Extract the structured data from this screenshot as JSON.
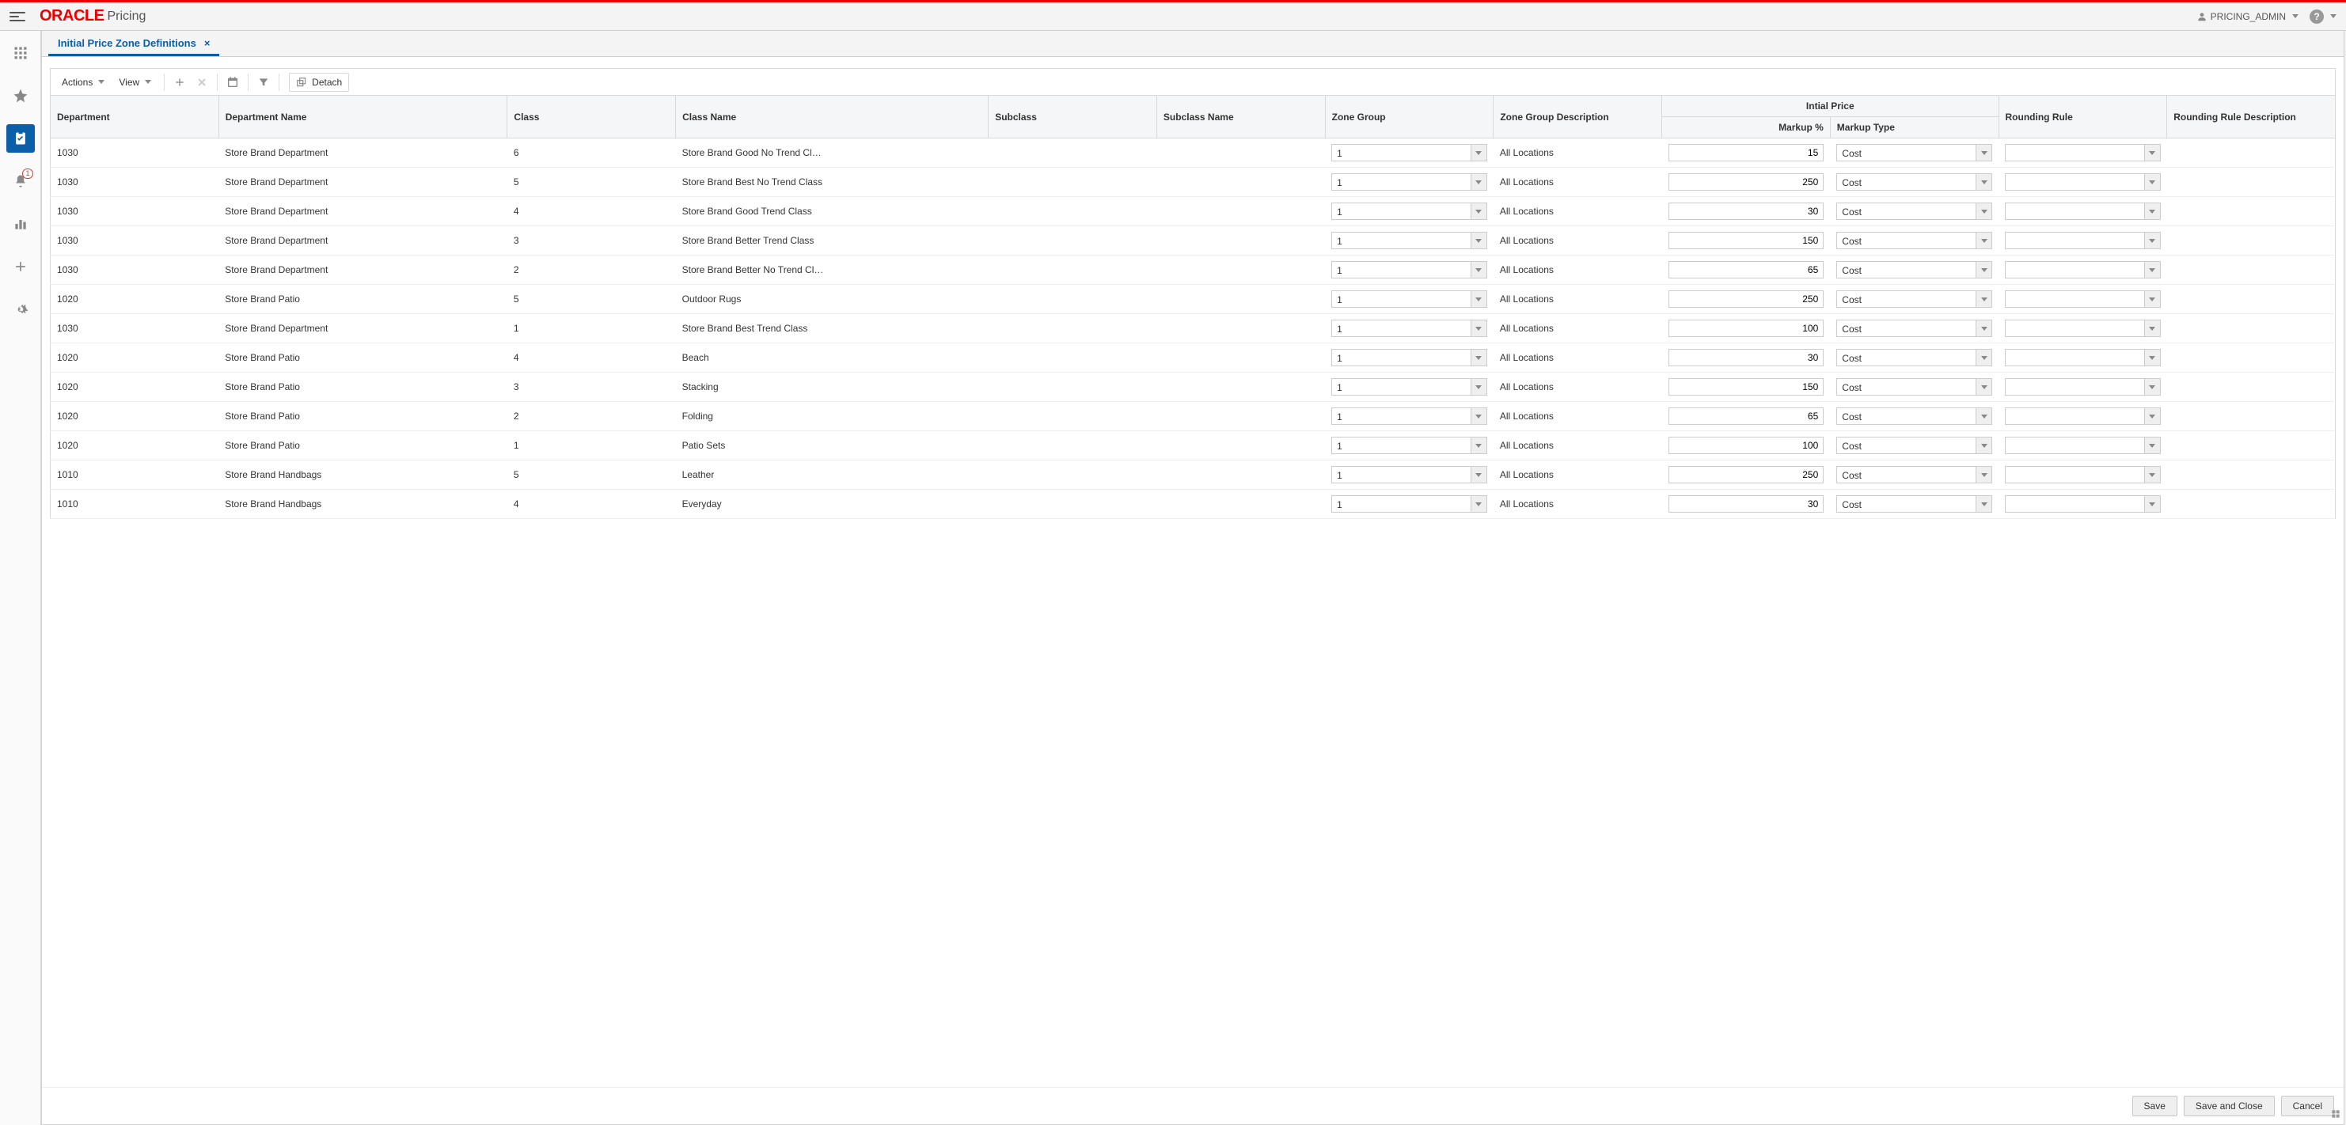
{
  "brand": {
    "name": "ORACLE",
    "module": "Pricing"
  },
  "user": {
    "name": "PRICING_ADMIN"
  },
  "sidebar": {
    "notification_count": "1"
  },
  "tab": {
    "title": "Initial Price Zone Definitions"
  },
  "toolbar": {
    "actions": "Actions",
    "view": "View",
    "detach": "Detach"
  },
  "columns": {
    "department": "Department",
    "department_name": "Department Name",
    "class": "Class",
    "class_name": "Class Name",
    "subclass": "Subclass",
    "subclass_name": "Subclass Name",
    "zone_group": "Zone Group",
    "zone_group_desc": "Zone Group Description",
    "initial_price": "Intial Price",
    "markup_pct": "Markup %",
    "markup_type": "Markup Type",
    "rounding_rule": "Rounding Rule",
    "rounding_rule_desc": "Rounding Rule Description"
  },
  "markup_type_value": "Cost",
  "rows": [
    {
      "dept": "1030",
      "dept_name": "Store Brand Department",
      "class": "6",
      "class_name": "Store Brand Good No Trend Cl…",
      "zone_group": "1",
      "zone_group_desc": "All Locations",
      "markup_pct": "15"
    },
    {
      "dept": "1030",
      "dept_name": "Store Brand Department",
      "class": "5",
      "class_name": "Store Brand Best No Trend Class",
      "zone_group": "1",
      "zone_group_desc": "All Locations",
      "markup_pct": "250"
    },
    {
      "dept": "1030",
      "dept_name": "Store Brand Department",
      "class": "4",
      "class_name": "Store Brand Good Trend Class",
      "zone_group": "1",
      "zone_group_desc": "All Locations",
      "markup_pct": "30"
    },
    {
      "dept": "1030",
      "dept_name": "Store Brand Department",
      "class": "3",
      "class_name": "Store Brand Better Trend Class",
      "zone_group": "1",
      "zone_group_desc": "All Locations",
      "markup_pct": "150"
    },
    {
      "dept": "1030",
      "dept_name": "Store Brand Department",
      "class": "2",
      "class_name": "Store Brand Better No Trend Cl…",
      "zone_group": "1",
      "zone_group_desc": "All Locations",
      "markup_pct": "65"
    },
    {
      "dept": "1020",
      "dept_name": "Store Brand Patio",
      "class": "5",
      "class_name": "Outdoor Rugs",
      "zone_group": "1",
      "zone_group_desc": "All Locations",
      "markup_pct": "250"
    },
    {
      "dept": "1030",
      "dept_name": "Store Brand Department",
      "class": "1",
      "class_name": "Store Brand Best Trend Class",
      "zone_group": "1",
      "zone_group_desc": "All Locations",
      "markup_pct": "100"
    },
    {
      "dept": "1020",
      "dept_name": "Store Brand Patio",
      "class": "4",
      "class_name": "Beach",
      "zone_group": "1",
      "zone_group_desc": "All Locations",
      "markup_pct": "30"
    },
    {
      "dept": "1020",
      "dept_name": "Store Brand Patio",
      "class": "3",
      "class_name": "Stacking",
      "zone_group": "1",
      "zone_group_desc": "All Locations",
      "markup_pct": "150"
    },
    {
      "dept": "1020",
      "dept_name": "Store Brand Patio",
      "class": "2",
      "class_name": "Folding",
      "zone_group": "1",
      "zone_group_desc": "All Locations",
      "markup_pct": "65"
    },
    {
      "dept": "1020",
      "dept_name": "Store Brand Patio",
      "class": "1",
      "class_name": "Patio Sets",
      "zone_group": "1",
      "zone_group_desc": "All Locations",
      "markup_pct": "100"
    },
    {
      "dept": "1010",
      "dept_name": "Store Brand Handbags",
      "class": "5",
      "class_name": "Leather",
      "zone_group": "1",
      "zone_group_desc": "All Locations",
      "markup_pct": "250"
    },
    {
      "dept": "1010",
      "dept_name": "Store Brand Handbags",
      "class": "4",
      "class_name": "Everyday",
      "zone_group": "1",
      "zone_group_desc": "All Locations",
      "markup_pct": "30"
    }
  ],
  "footer": {
    "save": "Save",
    "save_close": "Save and Close",
    "cancel": "Cancel"
  },
  "col_widths": {
    "dept": "7%",
    "dept_name": "12%",
    "class": "7%",
    "class_name": "13%",
    "subclass": "7%",
    "subclass_name": "7%",
    "zone_group": "7%",
    "zone_group_desc": "7%",
    "markup_pct": "7%",
    "markup_type": "7%",
    "rounding_rule": "7%",
    "rounding_rule_desc": "7%"
  }
}
